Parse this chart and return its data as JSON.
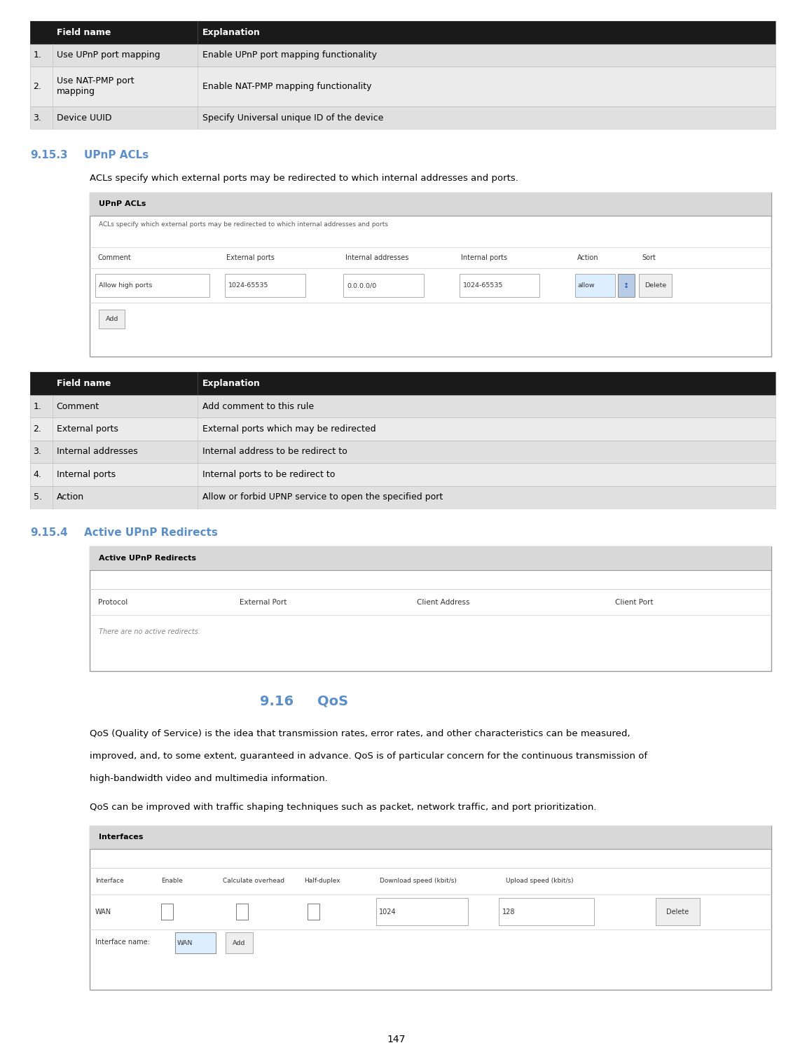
{
  "bg_color": "#ffffff",
  "page_number": "147",
  "table1": {
    "header": [
      "Field name",
      "Explanation"
    ],
    "rows": [
      [
        "1.",
        "Use UPnP port mapping",
        "Enable UPnP port mapping functionality"
      ],
      [
        "2.",
        "Use NAT-PMP port\nmapping",
        "Enable NAT-PMP mapping functionality"
      ],
      [
        "3.",
        "Device UUID",
        "Specify Universal unique ID of the device"
      ]
    ],
    "header_bg": "#1a1a1a",
    "header_color": "#ffffff"
  },
  "section_915_3": {
    "number": "9.15.3",
    "title": "UPnP ACLs",
    "color": "#5b8fc9",
    "body": "ACLs specify which external ports may be redirected to which internal addresses and ports."
  },
  "upnp_acls_screenshot": {
    "title": "UPnP ACLs",
    "subtitle": "ACLs specify which external ports may be redirected to which internal addresses and ports",
    "columns": [
      "Comment",
      "External ports",
      "Internal addresses",
      "Internal ports",
      "Action",
      "Sort"
    ],
    "row": [
      "Allow high ports",
      "1024-65535",
      "0.0.0.0/0",
      "1024-65535",
      "allow",
      ""
    ],
    "add_button": "Add"
  },
  "table2": {
    "header": [
      "Field name",
      "Explanation"
    ],
    "rows": [
      [
        "1.",
        "Comment",
        "Add comment to this rule"
      ],
      [
        "2.",
        "External ports",
        "External ports which may be redirected"
      ],
      [
        "3.",
        "Internal addresses",
        "Internal address to be redirect to"
      ],
      [
        "4.",
        "Internal ports",
        "Internal ports to be redirect to"
      ],
      [
        "5.",
        "Action",
        "Allow or forbid UPNP service to open the specified port"
      ]
    ],
    "header_bg": "#1a1a1a",
    "header_color": "#ffffff"
  },
  "section_915_4": {
    "number": "9.15.4",
    "title": "Active UPnP Redirects",
    "color": "#5b8fc9"
  },
  "active_upnp_screenshot": {
    "title": "Active UPnP Redirects",
    "columns": [
      "Protocol",
      "External Port",
      "Client Address",
      "Client Port"
    ],
    "empty_text": "There are no active redirects."
  },
  "section_916": {
    "number": "9.16",
    "title": "QoS",
    "color": "#5b8fc9",
    "body1_lines": [
      "QoS (Quality of Service) is the idea that transmission rates, error rates, and other characteristics can be measured,",
      "improved, and, to some extent, guaranteed in advance. QoS is of particular concern for the continuous transmission of",
      "high-bandwidth video and multimedia information."
    ],
    "body2": "QoS can be improved with traffic shaping techniques such as packet, network traffic, and port prioritization."
  },
  "interfaces_screenshot": {
    "title": "Interfaces",
    "columns": [
      "Interface",
      "Enable",
      "Calculate overhead",
      "Half-duplex",
      "Download speed (kbit/s)",
      "Upload speed (kbit/s)"
    ],
    "row_wan": "WAN",
    "row_dl": "1024",
    "row_ul": "128",
    "delete_button": "Delete",
    "interface_label": "Interface name:",
    "add_button": "Add",
    "wan_dropdown": "WAN"
  },
  "ml": 0.038,
  "mr": 0.978,
  "indent": 0.075
}
